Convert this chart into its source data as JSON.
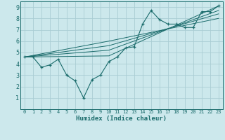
{
  "xlabel": "Humidex (Indice chaleur)",
  "bg_color": "#cce8ec",
  "grid_color": "#aacdd4",
  "line_color": "#1a6b6b",
  "xlim": [
    -0.5,
    23.5
  ],
  "ylim": [
    0,
    9.5
  ],
  "xticks": [
    0,
    1,
    2,
    3,
    4,
    5,
    6,
    7,
    8,
    9,
    10,
    11,
    12,
    13,
    14,
    15,
    16,
    17,
    18,
    19,
    20,
    21,
    22,
    23
  ],
  "yticks": [
    1,
    2,
    3,
    4,
    5,
    6,
    7,
    8,
    9
  ],
  "main_line": {
    "x": [
      0,
      1,
      2,
      3,
      4,
      5,
      6,
      7,
      8,
      9,
      10,
      11,
      12,
      13,
      14,
      15,
      16,
      17,
      18,
      19,
      20,
      21,
      22,
      23
    ],
    "y": [
      4.6,
      4.6,
      3.7,
      3.9,
      4.4,
      3.0,
      2.5,
      1.0,
      2.6,
      3.0,
      4.2,
      4.6,
      5.4,
      5.5,
      7.5,
      8.7,
      7.9,
      7.5,
      7.5,
      7.2,
      7.2,
      8.6,
      8.6,
      9.1
    ]
  },
  "ref_lines": [
    {
      "x": [
        0,
        10,
        23
      ],
      "y": [
        4.6,
        4.7,
        9.1
      ]
    },
    {
      "x": [
        0,
        10,
        23
      ],
      "y": [
        4.6,
        5.2,
        8.7
      ]
    },
    {
      "x": [
        0,
        10,
        23
      ],
      "y": [
        4.6,
        5.6,
        8.4
      ]
    },
    {
      "x": [
        0,
        10,
        23
      ],
      "y": [
        4.6,
        6.0,
        8.0
      ]
    }
  ]
}
